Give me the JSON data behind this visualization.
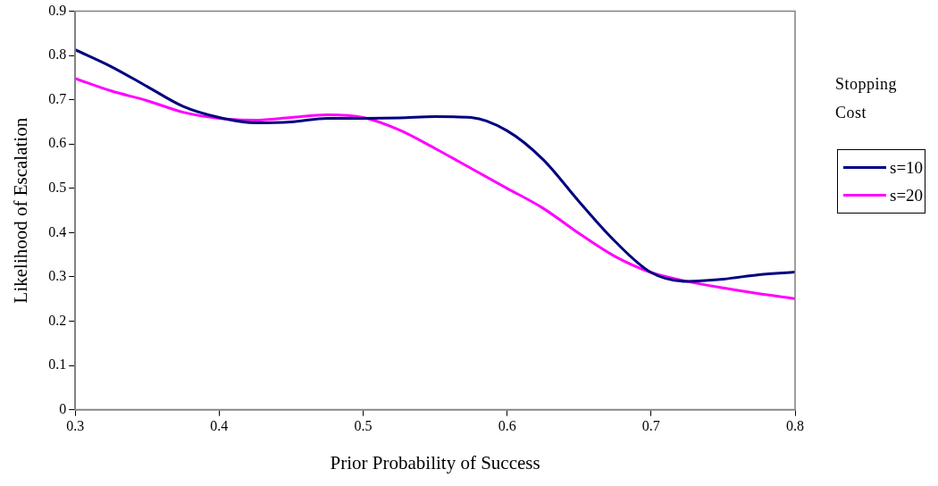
{
  "chart_data": {
    "type": "line",
    "xlabel": "Prior Probability of Success",
    "ylabel": "Likelihood of Escalation",
    "legend_title": "Stopping Cost",
    "legend": "right",
    "x": [
      0.3,
      0.325,
      0.35,
      0.375,
      0.4,
      0.425,
      0.45,
      0.475,
      0.5,
      0.525,
      0.55,
      0.575,
      0.6,
      0.625,
      0.65,
      0.675,
      0.7,
      0.725,
      0.75,
      0.775,
      0.8
    ],
    "series": [
      {
        "name": "s=10",
        "color": "#000080",
        "values": [
          0.813,
          0.775,
          0.73,
          0.685,
          0.66,
          0.648,
          0.65,
          0.658,
          0.658,
          0.659,
          0.662,
          0.66,
          0.63,
          0.565,
          0.47,
          0.38,
          0.31,
          0.29,
          0.295,
          0.305,
          0.311
        ]
      },
      {
        "name": "s=20",
        "color": "#ff00ff",
        "values": [
          0.748,
          0.72,
          0.698,
          0.672,
          0.658,
          0.654,
          0.66,
          0.666,
          0.66,
          0.632,
          0.59,
          0.545,
          0.5,
          0.455,
          0.398,
          0.346,
          0.31,
          0.29,
          0.275,
          0.262,
          0.251
        ]
      }
    ],
    "xlim": [
      0.3,
      0.8
    ],
    "xticks": [
      0.3,
      0.4,
      0.5,
      0.6,
      0.7,
      0.8
    ],
    "ylim": [
      0,
      0.9
    ],
    "yticks": [
      0,
      0.1,
      0.2,
      0.3,
      0.4,
      0.5,
      0.6,
      0.7,
      0.8,
      0.9
    ],
    "grid": false,
    "marker": "none",
    "line_style": "solid"
  }
}
